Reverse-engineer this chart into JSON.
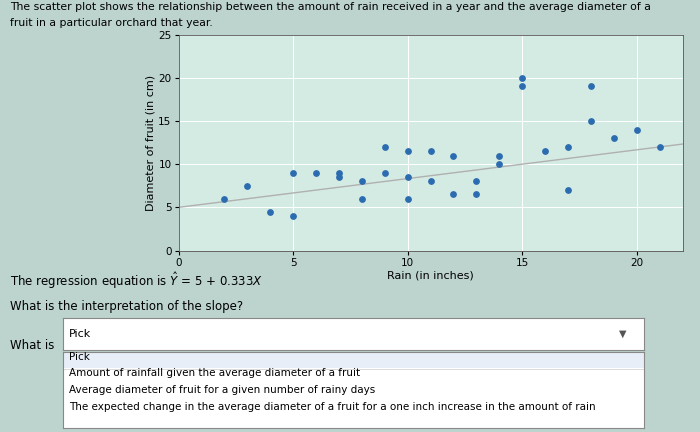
{
  "title_line1": "The scatter plot shows the relationship between the amount of rain received in a year and the average diameter of a",
  "title_line2": "fruit in a particular orchard that year.",
  "xlabel": "Rain (in inches)",
  "ylabel": "Diameter of fruit (in cm)",
  "xlim": [
    0,
    22
  ],
  "ylim": [
    0,
    25
  ],
  "xticks": [
    0,
    5,
    10,
    15,
    20
  ],
  "yticks": [
    0,
    5,
    10,
    15,
    20,
    25
  ],
  "scatter_x": [
    2,
    3,
    4,
    5,
    5,
    6,
    7,
    7,
    8,
    8,
    9,
    9,
    10,
    10,
    10,
    11,
    11,
    12,
    12,
    13,
    13,
    14,
    14,
    15,
    15,
    16,
    17,
    17,
    18,
    18,
    19,
    20,
    21
  ],
  "scatter_y": [
    6,
    7.5,
    4.5,
    9,
    4,
    9,
    8.5,
    9,
    8,
    6,
    12,
    9,
    8.5,
    11.5,
    6,
    11.5,
    8,
    11,
    6.5,
    6.5,
    8,
    11,
    10,
    19,
    20,
    11.5,
    12,
    7,
    15,
    19,
    13,
    14,
    12
  ],
  "regression_slope": 0.333,
  "regression_intercept": 5,
  "scatter_color": "#2b6cb0",
  "line_color": "#b0b0b0",
  "plot_bg": "#d4ebe4",
  "grid_color": "#ffffff",
  "fig_bg": "#bdd4ce",
  "regression_text": "The regression equation is $\\hat{Y}$ = 5 + 0.333$X$",
  "slope_text": "What is the interpretation of the slope?",
  "whatis_text": "What is",
  "pick_text": "Pick",
  "drop_items": [
    "Pick",
    "Amount of rainfall given the average diameter of a fruit",
    "Average diameter of fruit for a given number of rainy days",
    "The expected change in the average diameter of a fruit for a one inch increase in the amount of rain"
  ]
}
